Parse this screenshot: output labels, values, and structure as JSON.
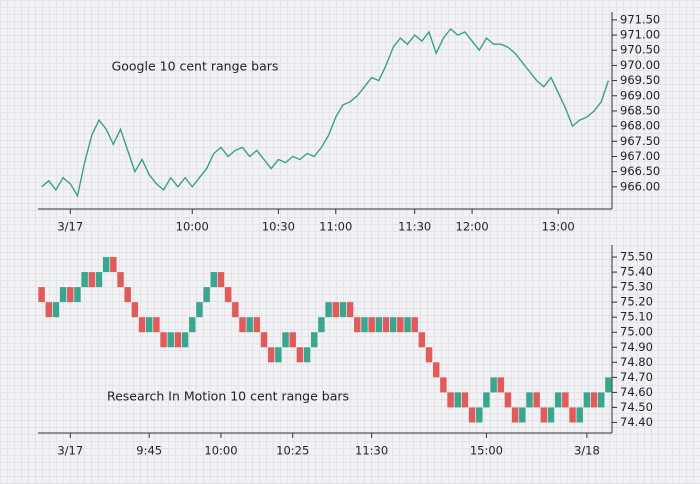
{
  "chart_data": [
    {
      "type": "line",
      "annotation": "Google 10 cent range bars",
      "categories": [
        null,
        null,
        null,
        null,
        "3/17",
        null,
        null,
        null,
        null,
        null,
        null,
        null,
        null,
        null,
        null,
        null,
        null,
        null,
        null,
        null,
        null,
        "10:00",
        null,
        null,
        null,
        null,
        null,
        null,
        null,
        null,
        null,
        null,
        null,
        "10:30",
        null,
        null,
        null,
        null,
        null,
        null,
        null,
        "11:00",
        null,
        null,
        null,
        null,
        null,
        null,
        null,
        null,
        null,
        null,
        "11:30",
        null,
        null,
        null,
        null,
        null,
        null,
        null,
        "12:00",
        null,
        null,
        null,
        null,
        null,
        null,
        null,
        null,
        null,
        null,
        null,
        "13:00",
        null,
        null,
        null,
        null,
        null,
        null,
        null
      ],
      "values": [
        966.0,
        966.2,
        965.9,
        966.3,
        966.1,
        965.7,
        966.8,
        967.7,
        968.2,
        967.9,
        967.4,
        967.9,
        967.2,
        966.5,
        966.9,
        966.4,
        966.1,
        965.9,
        966.3,
        966.0,
        966.3,
        966.0,
        966.3,
        966.6,
        967.1,
        967.3,
        967.0,
        967.2,
        967.3,
        967.0,
        967.2,
        966.9,
        966.6,
        966.9,
        966.8,
        967.0,
        966.9,
        967.1,
        967.0,
        967.3,
        967.7,
        968.3,
        968.7,
        968.8,
        969.0,
        969.3,
        969.6,
        969.5,
        970.0,
        970.6,
        970.9,
        970.7,
        971.0,
        970.8,
        971.1,
        970.4,
        970.9,
        971.2,
        971.0,
        971.1,
        970.8,
        970.5,
        970.9,
        970.7,
        970.7,
        970.6,
        970.4,
        970.1,
        969.8,
        969.5,
        969.3,
        969.6,
        969.1,
        968.6,
        968.0,
        968.2,
        968.3,
        968.5,
        968.8,
        969.5
      ],
      "color": "#3a9e8c",
      "ylim": [
        965.27,
        971.76
      ],
      "yticks": [
        {
          "value": 966,
          "label": "966.00"
        },
        {
          "value": 966.5,
          "label": "966.50"
        },
        {
          "value": 967,
          "label": "967.00"
        },
        {
          "value": 967.5,
          "label": "967.50"
        },
        {
          "value": 968,
          "label": "968.00"
        },
        {
          "value": 968.5,
          "label": "968.50"
        },
        {
          "value": 969,
          "label": "969.00"
        },
        {
          "value": 969.5,
          "label": "969.50"
        },
        {
          "value": 970,
          "label": "970.00"
        },
        {
          "value": 970.5,
          "label": "970.50"
        },
        {
          "value": 971,
          "label": "971.00"
        },
        {
          "value": 971.5,
          "label": "971.50"
        }
      ]
    },
    {
      "type": "range-bar",
      "annotation": "Research In Motion 10 cent range bars",
      "categories": [
        null,
        null,
        null,
        null,
        "3/17",
        null,
        null,
        null,
        null,
        null,
        null,
        null,
        null,
        null,
        null,
        "9:45",
        null,
        null,
        null,
        null,
        null,
        null,
        null,
        null,
        null,
        "10:00",
        null,
        null,
        null,
        null,
        null,
        null,
        null,
        null,
        null,
        "10:25",
        null,
        null,
        null,
        null,
        null,
        null,
        null,
        null,
        null,
        null,
        "11:30",
        null,
        null,
        null,
        null,
        null,
        null,
        null,
        null,
        null,
        null,
        null,
        null,
        null,
        null,
        null,
        "15:00",
        null,
        null,
        null,
        null,
        null,
        null,
        null,
        null,
        null,
        null,
        null,
        null,
        null,
        "3/18",
        null,
        null,
        null
      ],
      "open": [
        75.3,
        75.2,
        75.1,
        75.2,
        75.3,
        75.2,
        75.3,
        75.4,
        75.3,
        75.4,
        75.5,
        75.4,
        75.3,
        75.2,
        75.1,
        75.0,
        75.1,
        75.0,
        74.9,
        75.0,
        74.9,
        75.0,
        75.1,
        75.2,
        75.3,
        75.4,
        75.3,
        75.2,
        75.1,
        75.0,
        75.1,
        75.0,
        74.9,
        74.8,
        74.9,
        75.0,
        74.9,
        74.8,
        74.9,
        75.0,
        75.1,
        75.2,
        75.1,
        75.2,
        75.1,
        75.0,
        75.1,
        75.0,
        75.1,
        75.0,
        75.1,
        75.0,
        75.1,
        75.0,
        74.9,
        74.8,
        74.7,
        74.6,
        74.5,
        74.6,
        74.5,
        74.4,
        74.5,
        74.6,
        74.7,
        74.6,
        74.5,
        74.4,
        74.5,
        74.6,
        74.5,
        74.4,
        74.5,
        74.6,
        74.5,
        74.4,
        74.5,
        74.6,
        74.5,
        74.6
      ],
      "close": [
        75.2,
        75.1,
        75.2,
        75.3,
        75.2,
        75.3,
        75.4,
        75.3,
        75.4,
        75.5,
        75.4,
        75.3,
        75.2,
        75.1,
        75.0,
        75.1,
        75.0,
        74.9,
        75.0,
        74.9,
        75.0,
        75.1,
        75.2,
        75.3,
        75.4,
        75.3,
        75.2,
        75.1,
        75.0,
        75.1,
        75.0,
        74.9,
        74.8,
        74.9,
        75.0,
        74.9,
        74.8,
        74.9,
        75.0,
        75.1,
        75.2,
        75.1,
        75.2,
        75.1,
        75.0,
        75.1,
        75.0,
        75.1,
        75.0,
        75.1,
        75.0,
        75.1,
        75.0,
        74.9,
        74.8,
        74.7,
        74.6,
        74.5,
        74.6,
        74.5,
        74.4,
        74.5,
        74.6,
        74.7,
        74.6,
        74.5,
        74.4,
        74.5,
        74.6,
        74.5,
        74.4,
        74.5,
        74.6,
        74.5,
        74.4,
        74.5,
        74.6,
        74.5,
        74.6,
        74.7
      ],
      "up_color": "#3aa68f",
      "down_color": "#e25b5b",
      "ylim": [
        74.33,
        75.58
      ],
      "yticks": [
        {
          "value": 74.4,
          "label": "74.40"
        },
        {
          "value": 74.5,
          "label": "74.50"
        },
        {
          "value": 74.6,
          "label": "74.60"
        },
        {
          "value": 74.7,
          "label": "74.70"
        },
        {
          "value": 74.8,
          "label": "74.80"
        },
        {
          "value": 74.9,
          "label": "74.90"
        },
        {
          "value": 75,
          "label": "75.00"
        },
        {
          "value": 75.1,
          "label": "75.10"
        },
        {
          "value": 75.2,
          "label": "75.20"
        },
        {
          "value": 75.3,
          "label": "75.30"
        },
        {
          "value": 75.4,
          "label": "75.40"
        },
        {
          "value": 75.5,
          "label": "75.50"
        }
      ]
    }
  ]
}
